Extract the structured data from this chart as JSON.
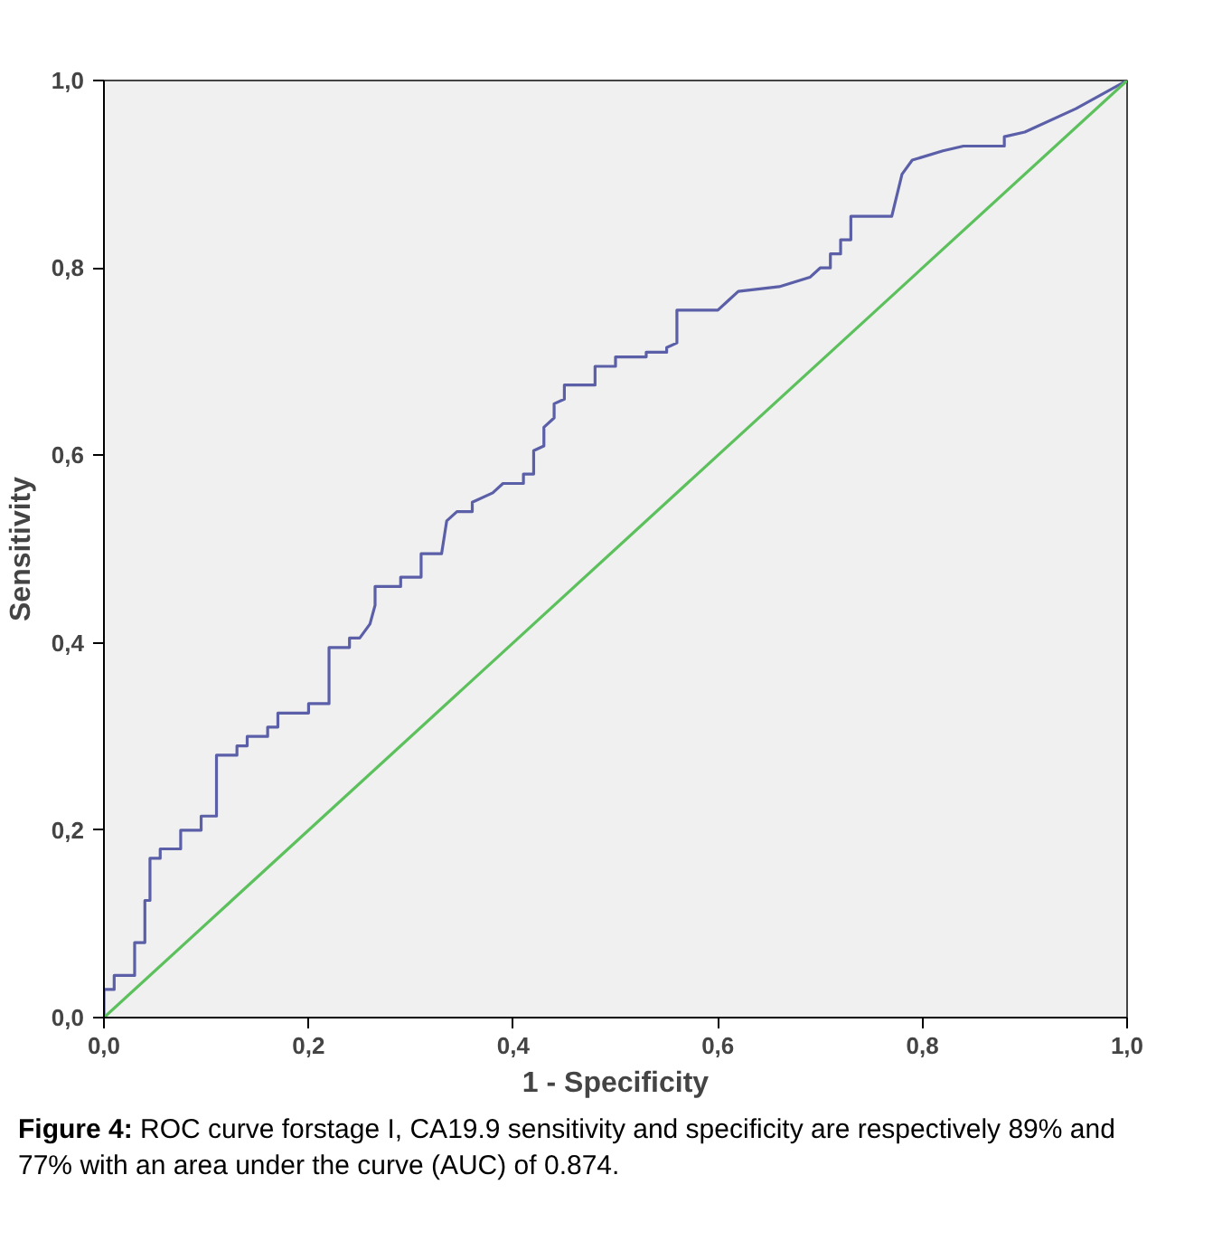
{
  "chart_data": {
    "type": "line",
    "xlabel": "1 - Specificity",
    "ylabel": "Sensitivity",
    "xlim": [
      0,
      1
    ],
    "ylim": [
      0,
      1
    ],
    "xticks": [
      {
        "value": 0,
        "label": "0,0"
      },
      {
        "value": 0.2,
        "label": "0,2"
      },
      {
        "value": 0.4,
        "label": "0,4"
      },
      {
        "value": 0.6,
        "label": "0,6"
      },
      {
        "value": 0.8,
        "label": "0,8"
      },
      {
        "value": 1,
        "label": "1,0"
      }
    ],
    "yticks": [
      {
        "value": 0,
        "label": "0,0"
      },
      {
        "value": 0.2,
        "label": "0,2"
      },
      {
        "value": 0.4,
        "label": "0,4"
      },
      {
        "value": 0.6,
        "label": "0,6"
      },
      {
        "value": 0.8,
        "label": "0,8"
      },
      {
        "value": 1,
        "label": "1,0"
      }
    ],
    "grid": false,
    "marker": "none",
    "line_style": "solid",
    "series": [
      {
        "color": "#5a5fa8",
        "x": [
          0,
          0,
          0.01,
          0.01,
          0.03,
          0.03,
          0.04,
          0.04,
          0.045,
          0.045,
          0.055,
          0.055,
          0.075,
          0.075,
          0.095,
          0.095,
          0.11,
          0.11,
          0.13,
          0.13,
          0.14,
          0.14,
          0.16,
          0.16,
          0.17,
          0.17,
          0.2,
          0.2,
          0.22,
          0.22,
          0.24,
          0.24,
          0.25,
          0.26,
          0.265,
          0.265,
          0.29,
          0.29,
          0.31,
          0.31,
          0.33,
          0.335,
          0.345,
          0.36,
          0.36,
          0.38,
          0.39,
          0.41,
          0.41,
          0.42,
          0.42,
          0.43,
          0.43,
          0.44,
          0.44,
          0.45,
          0.45,
          0.48,
          0.48,
          0.5,
          0.5,
          0.53,
          0.53,
          0.55,
          0.55,
          0.56,
          0.56,
          0.6,
          0.61,
          0.62,
          0.66,
          0.69,
          0.7,
          0.71,
          0.71,
          0.72,
          0.72,
          0.73,
          0.73,
          0.77,
          0.78,
          0.79,
          0.82,
          0.84,
          0.88,
          0.88,
          0.9,
          0.95,
          1
        ],
        "values": [
          0,
          0.03,
          0.03,
          0.045,
          0.045,
          0.08,
          0.08,
          0.125,
          0.125,
          0.17,
          0.17,
          0.18,
          0.18,
          0.2,
          0.2,
          0.215,
          0.215,
          0.28,
          0.28,
          0.29,
          0.29,
          0.3,
          0.3,
          0.31,
          0.31,
          0.325,
          0.325,
          0.335,
          0.335,
          0.395,
          0.395,
          0.405,
          0.405,
          0.42,
          0.44,
          0.46,
          0.46,
          0.47,
          0.47,
          0.495,
          0.495,
          0.53,
          0.54,
          0.54,
          0.55,
          0.56,
          0.57,
          0.57,
          0.58,
          0.58,
          0.605,
          0.61,
          0.63,
          0.64,
          0.655,
          0.66,
          0.675,
          0.675,
          0.695,
          0.695,
          0.705,
          0.705,
          0.71,
          0.71,
          0.715,
          0.72,
          0.755,
          0.755,
          0.765,
          0.775,
          0.78,
          0.79,
          0.8,
          0.8,
          0.815,
          0.815,
          0.83,
          0.83,
          0.855,
          0.855,
          0.9,
          0.915,
          0.925,
          0.93,
          0.93,
          0.94,
          0.945,
          0.97,
          1
        ]
      },
      {
        "color": "#5cc05c",
        "x": [
          0,
          1
        ],
        "values": [
          0,
          1
        ]
      }
    ],
    "annotations": [
      "Figure 4: ROC curve forstage I, CA19.9 sensitivity and specificity are respectively 89% and 77% with an area under the curve (AUC) of 0.874."
    ]
  }
}
